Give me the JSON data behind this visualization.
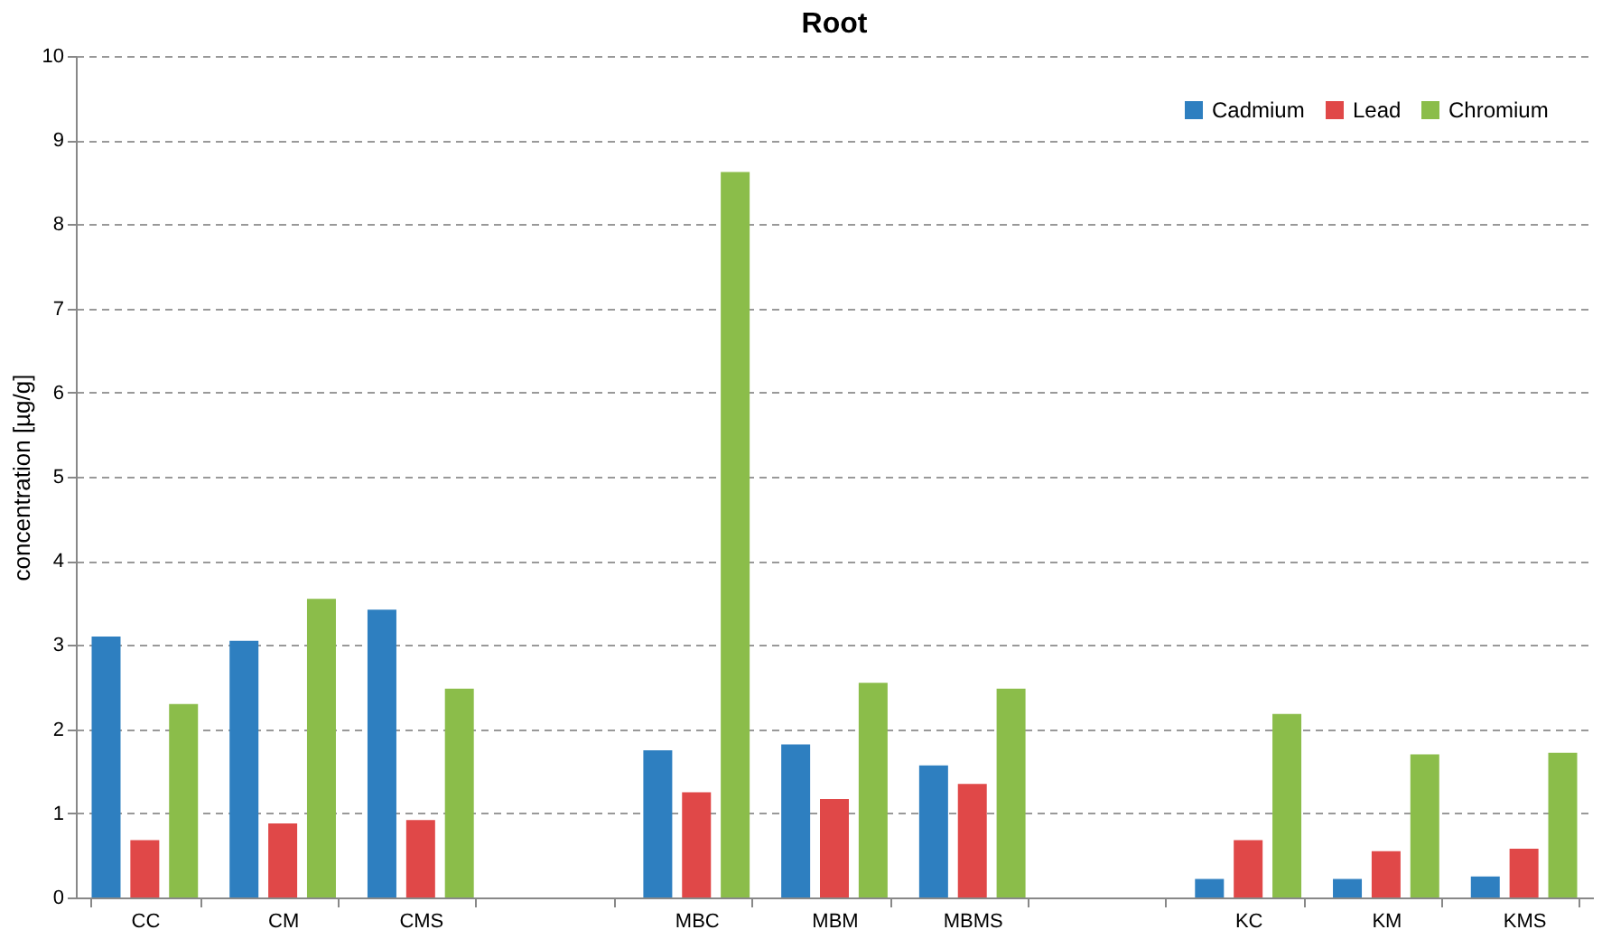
{
  "chart_data": {
    "type": "bar",
    "title": "Root",
    "ylabel": "concentration [µg/g]",
    "categories": [
      "CC",
      "CM",
      "CMS",
      null,
      "MBC",
      "MBM",
      "MBMS",
      null,
      "KC",
      "KM",
      "KMS"
    ],
    "series": [
      {
        "name": "Cadmium",
        "color": "#2e7fc0",
        "values": [
          3.1,
          3.05,
          3.42,
          null,
          1.75,
          1.82,
          1.57,
          null,
          0.22,
          0.22,
          0.25
        ]
      },
      {
        "name": "Lead",
        "color": "#e04848",
        "values": [
          0.68,
          0.88,
          0.92,
          null,
          1.25,
          1.17,
          1.35,
          null,
          0.68,
          0.55,
          0.58
        ]
      },
      {
        "name": "Chromium",
        "color": "#8bbd4a",
        "values": [
          2.3,
          3.55,
          2.48,
          null,
          8.62,
          2.55,
          2.48,
          null,
          2.18,
          1.7,
          1.72
        ]
      }
    ],
    "ylim": [
      0,
      10
    ],
    "yticks": [
      0,
      1,
      2,
      3,
      4,
      5,
      6,
      7,
      8,
      9,
      10
    ],
    "grid": "y",
    "legend": "top right"
  }
}
